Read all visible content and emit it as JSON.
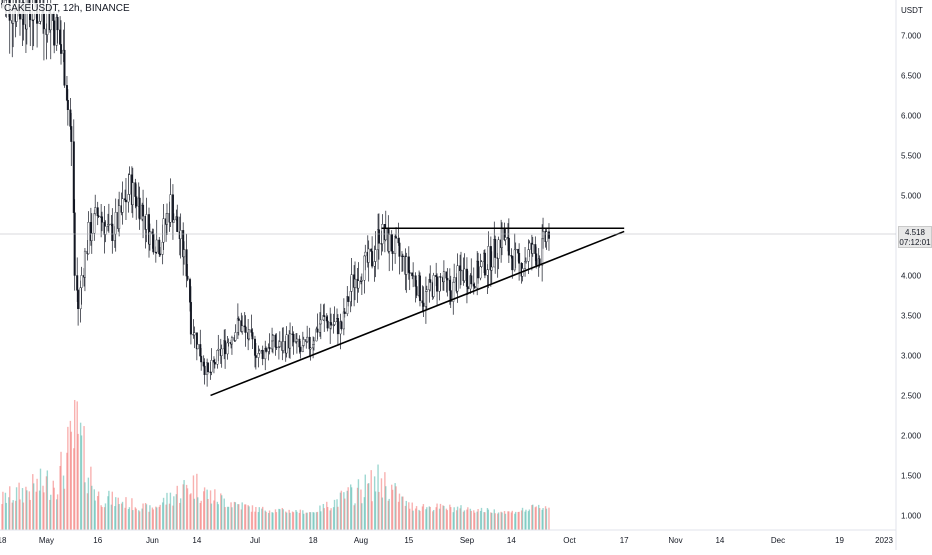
{
  "legend": {
    "symbol": "CAKEUSDT",
    "interval": "12h",
    "exchange": "BINANCE",
    "separator": ", "
  },
  "currency_label": "USDT",
  "last_price": "4.518",
  "countdown": "07:12:01",
  "colors": {
    "up_candle_body": "#ffffff",
    "down_candle_body": "#131722",
    "candle_outline": "#131722",
    "volume_up": "#26a69a",
    "volume_down": "#ef5350",
    "trendline": "#000000",
    "last_price_line": "#b2b5be",
    "axis_border": "#e0e3eb"
  },
  "chart_data": {
    "type": "candlestick",
    "title": "CAKEUSDT, 12h, BINANCE",
    "y_axis_position": "right",
    "y_ticks": [
      "7.000",
      "6.500",
      "6.000",
      "5.500",
      "5.000",
      "4.500",
      "4.000",
      "3.500",
      "3.000",
      "2.500",
      "2.000",
      "1.500",
      "1.000"
    ],
    "ylim": [
      0.84,
      7.44
    ],
    "x_start": "2022-04-18",
    "x_end": "2023-01-01",
    "x_ticks": [
      {
        "label": "18",
        "date": "2022-04-18"
      },
      {
        "label": "May",
        "date": "2022-05-01"
      },
      {
        "label": "16",
        "date": "2022-05-16"
      },
      {
        "label": "Jun",
        "date": "2022-06-01"
      },
      {
        "label": "14",
        "date": "2022-06-14"
      },
      {
        "label": "Jul",
        "date": "2022-07-01"
      },
      {
        "label": "18",
        "date": "2022-07-18"
      },
      {
        "label": "Aug",
        "date": "2022-08-01"
      },
      {
        "label": "15",
        "date": "2022-08-15"
      },
      {
        "label": "Sep",
        "date": "2022-09-01"
      },
      {
        "label": "14",
        "date": "2022-09-14"
      },
      {
        "label": "Oct",
        "date": "2022-10-01"
      },
      {
        "label": "17",
        "date": "2022-10-17"
      },
      {
        "label": "Nov",
        "date": "2022-11-01"
      },
      {
        "label": "14",
        "date": "2022-11-14"
      },
      {
        "label": "Dec",
        "date": "2022-12-01"
      },
      {
        "label": "19",
        "date": "2022-12-19"
      },
      {
        "label": "2023",
        "date": "2023-01-01"
      }
    ],
    "price_path": [
      [
        "2022-04-18",
        7.4
      ],
      [
        "2022-04-25",
        7.35
      ],
      [
        "2022-05-01",
        7.3
      ],
      [
        "2022-05-03",
        7.25
      ],
      [
        "2022-05-05",
        7.0
      ],
      [
        "2022-05-07",
        6.6
      ],
      [
        "2022-05-09",
        5.6
      ],
      [
        "2022-05-10",
        4.0
      ],
      [
        "2022-05-11",
        3.6
      ],
      [
        "2022-05-12",
        4.0
      ],
      [
        "2022-05-14",
        4.5
      ],
      [
        "2022-05-17",
        4.8
      ],
      [
        "2022-05-20",
        4.5
      ],
      [
        "2022-05-23",
        4.7
      ],
      [
        "2022-05-26",
        5.1
      ],
      [
        "2022-05-29",
        4.9
      ],
      [
        "2022-06-01",
        4.5
      ],
      [
        "2022-06-04",
        4.4
      ],
      [
        "2022-06-07",
        4.9
      ],
      [
        "2022-06-10",
        4.4
      ],
      [
        "2022-06-12",
        4.0
      ],
      [
        "2022-06-13",
        3.4
      ],
      [
        "2022-06-15",
        3.1
      ],
      [
        "2022-06-18",
        2.75
      ],
      [
        "2022-06-21",
        3.0
      ],
      [
        "2022-06-24",
        3.2
      ],
      [
        "2022-06-27",
        3.4
      ],
      [
        "2022-06-30",
        3.2
      ],
      [
        "2022-07-03",
        3.0
      ],
      [
        "2022-07-06",
        3.15
      ],
      [
        "2022-07-09",
        3.1
      ],
      [
        "2022-07-12",
        3.2
      ],
      [
        "2022-07-15",
        3.05
      ],
      [
        "2022-07-18",
        3.15
      ],
      [
        "2022-07-21",
        3.45
      ],
      [
        "2022-07-24",
        3.4
      ],
      [
        "2022-07-27",
        3.35
      ],
      [
        "2022-07-30",
        3.9
      ],
      [
        "2022-08-02",
        4.1
      ],
      [
        "2022-08-05",
        4.2
      ],
      [
        "2022-08-07",
        4.55
      ],
      [
        "2022-08-09",
        4.45
      ],
      [
        "2022-08-12",
        4.3
      ],
      [
        "2022-08-15",
        4.1
      ],
      [
        "2022-08-18",
        3.9
      ],
      [
        "2022-08-20",
        3.7
      ],
      [
        "2022-08-22",
        3.85
      ],
      [
        "2022-08-25",
        3.95
      ],
      [
        "2022-08-28",
        3.8
      ],
      [
        "2022-08-31",
        4.05
      ],
      [
        "2022-09-03",
        3.95
      ],
      [
        "2022-09-06",
        4.1
      ],
      [
        "2022-09-09",
        4.25
      ],
      [
        "2022-09-12",
        4.5
      ],
      [
        "2022-09-14",
        4.3
      ],
      [
        "2022-09-17",
        4.1
      ],
      [
        "2022-09-20",
        4.3
      ],
      [
        "2022-09-23",
        4.25
      ],
      [
        "2022-09-25",
        4.518
      ]
    ],
    "volume_path": [
      [
        "2022-04-18",
        1.25
      ],
      [
        "2022-05-01",
        1.5
      ],
      [
        "2022-05-05",
        1.6
      ],
      [
        "2022-05-10",
        2.3
      ],
      [
        "2022-05-12",
        1.9
      ],
      [
        "2022-05-16",
        1.3
      ],
      [
        "2022-06-01",
        1.1
      ],
      [
        "2022-06-13",
        1.5
      ],
      [
        "2022-06-18",
        1.3
      ],
      [
        "2022-07-01",
        1.1
      ],
      [
        "2022-07-18",
        1.05
      ],
      [
        "2022-08-07",
        1.55
      ],
      [
        "2022-08-15",
        1.15
      ],
      [
        "2022-09-01",
        1.1
      ],
      [
        "2022-09-14",
        1.05
      ],
      [
        "2022-09-25",
        1.15
      ]
    ],
    "annotations": [
      {
        "type": "horizontal_resistance",
        "from": [
          "2022-08-07",
          4.59
        ],
        "to": [
          "2022-10-17",
          4.59
        ]
      },
      {
        "type": "rising_support",
        "from": [
          "2022-06-18",
          2.5
        ],
        "to": [
          "2022-10-17",
          4.55
        ]
      }
    ],
    "grid": false,
    "legend_position": "top-left"
  }
}
